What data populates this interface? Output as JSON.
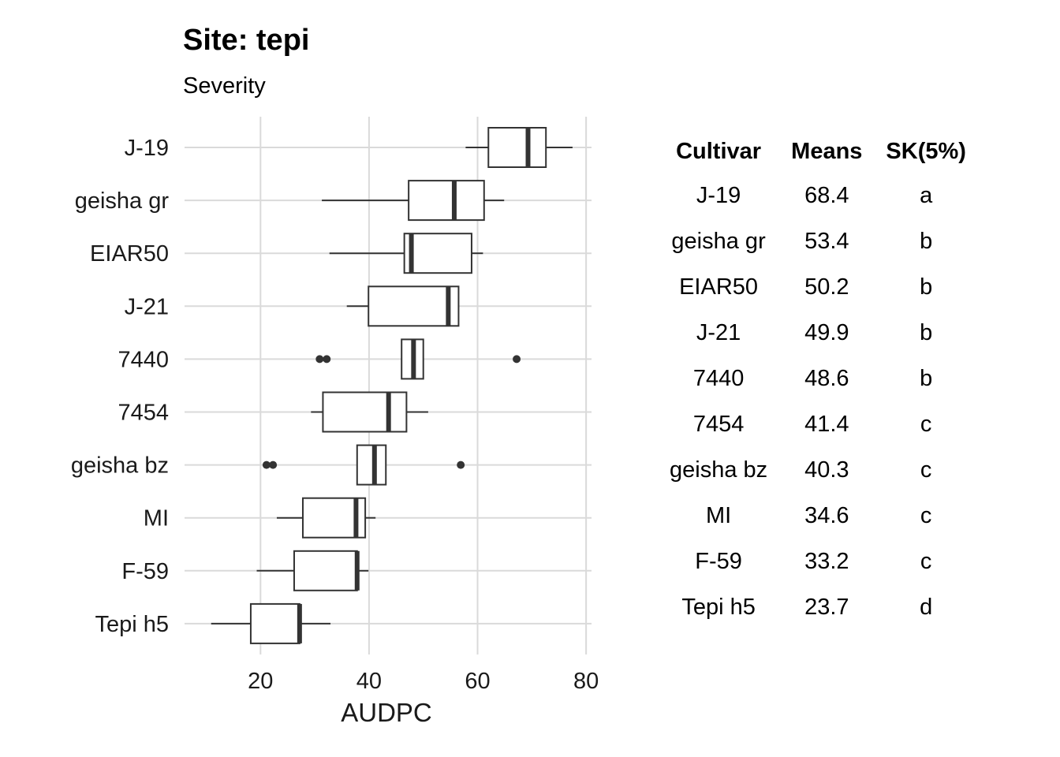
{
  "chart_data": [
    {
      "type": "boxplot",
      "title": "Site: tepi",
      "subtitle": "Severity",
      "xlabel": "AUDPC",
      "ylabel": "",
      "xlim": [
        6,
        81
      ],
      "x_ticks": [
        20,
        40,
        60,
        80
      ],
      "orientation": "horizontal",
      "grid": true,
      "categories": [
        "J-19",
        "geisha gr",
        "EIAR50",
        "J-21",
        "7440",
        "7454",
        "geisha bz",
        "MI",
        "F-59",
        "Tepi h5"
      ],
      "boxes": [
        {
          "category": "J-19",
          "whisker_low": 57.8,
          "q1": 62.0,
          "median": 69.3,
          "q3": 72.6,
          "whisker_high": 77.5,
          "outliers": []
        },
        {
          "category": "geisha gr",
          "whisker_low": 31.3,
          "q1": 47.3,
          "median": 55.7,
          "q3": 61.2,
          "whisker_high": 64.9,
          "outliers": []
        },
        {
          "category": "EIAR50",
          "whisker_low": 32.7,
          "q1": 46.5,
          "median": 47.8,
          "q3": 58.9,
          "whisker_high": 61.0,
          "outliers": []
        },
        {
          "category": "J-21",
          "whisker_low": 35.9,
          "q1": 39.9,
          "median": 54.6,
          "q3": 56.5,
          "whisker_high": 56.5,
          "outliers": []
        },
        {
          "category": "7440",
          "whisker_low": 46.0,
          "q1": 46.0,
          "median": 48.2,
          "q3": 50.0,
          "whisker_high": 50.0,
          "outliers": [
            30.9,
            32.2,
            67.2
          ]
        },
        {
          "category": "7454",
          "whisker_low": 29.3,
          "q1": 31.5,
          "median": 43.6,
          "q3": 46.9,
          "whisker_high": 50.9,
          "outliers": []
        },
        {
          "category": "geisha bz",
          "whisker_low": 37.8,
          "q1": 37.8,
          "median": 41.0,
          "q3": 43.1,
          "whisker_high": 43.1,
          "outliers": [
            21.1,
            22.3,
            56.9
          ]
        },
        {
          "category": "MI",
          "whisker_low": 23.0,
          "q1": 27.8,
          "median": 37.6,
          "q3": 39.3,
          "whisker_high": 41.2,
          "outliers": []
        },
        {
          "category": "F-59",
          "whisker_low": 19.3,
          "q1": 26.2,
          "median": 37.8,
          "q3": 37.8,
          "whisker_high": 39.9,
          "outliers": []
        },
        {
          "category": "Tepi h5",
          "whisker_low": 10.9,
          "q1": 18.2,
          "median": 27.2,
          "q3": 27.2,
          "whisker_high": 32.9,
          "outliers": []
        }
      ]
    },
    {
      "type": "table",
      "columns": [
        "Cultivar",
        "Means",
        "SK(5%)"
      ],
      "rows": [
        [
          "J-19",
          "68.4",
          "a"
        ],
        [
          "geisha gr",
          "53.4",
          "b"
        ],
        [
          "EIAR50",
          "50.2",
          "b"
        ],
        [
          "J-21",
          "49.9",
          "b"
        ],
        [
          "7440",
          "48.6",
          "b"
        ],
        [
          "7454",
          "41.4",
          "c"
        ],
        [
          "geisha bz",
          "40.3",
          "c"
        ],
        [
          "MI",
          "34.6",
          "c"
        ],
        [
          "F-59",
          "33.2",
          "c"
        ],
        [
          "Tepi h5",
          "23.7",
          "d"
        ]
      ]
    }
  ]
}
